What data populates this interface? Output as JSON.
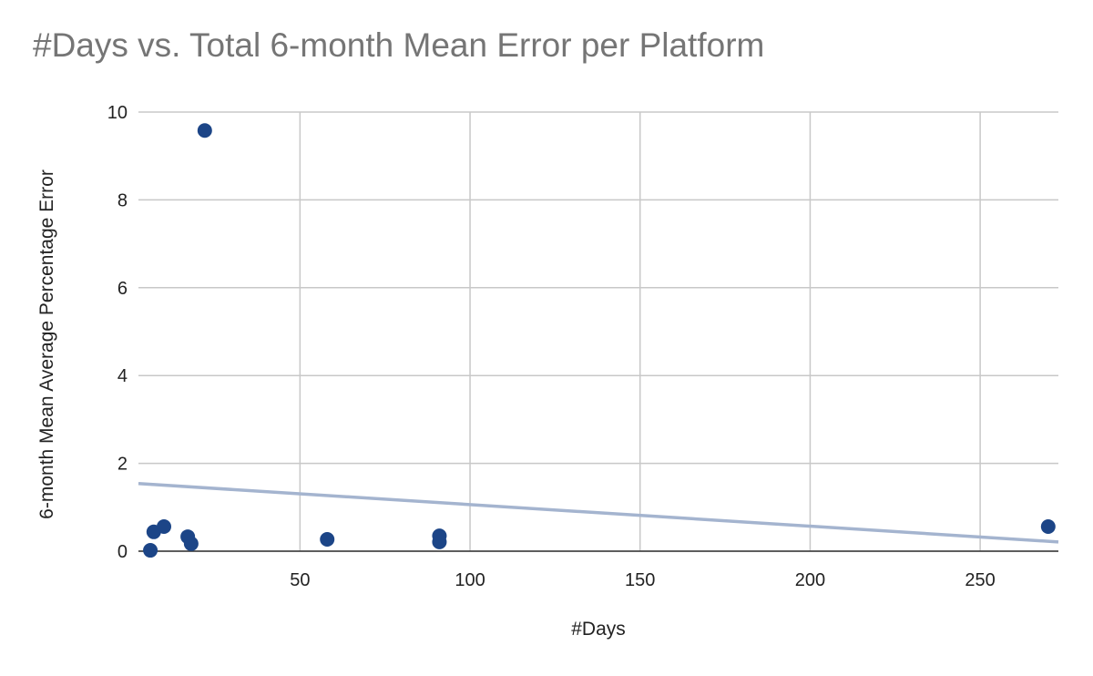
{
  "chart_data": {
    "type": "scatter",
    "title": "#Days vs. Total 6-month Mean Error per Platform",
    "x_label": "#Days",
    "y_label": "6-month Mean Average Percentage Error",
    "series": [
      {
        "name": "6-month Mean Average Percentage Error",
        "color": "#1c4587",
        "x": [
          22,
          7,
          10,
          6,
          17,
          18,
          58,
          91,
          91,
          270
        ],
        "values": [
          9.58,
          0.44,
          0.56,
          0.02,
          0.33,
          0.17,
          0.27,
          0.35,
          0.21,
          0.56
        ]
      }
    ],
    "trendline": {
      "color": "#a4b4cf",
      "x": [
        2.5,
        273
      ],
      "values": [
        1.54,
        0.21
      ]
    },
    "xlim": [
      2.5,
      273
    ],
    "xticks": [
      50,
      100,
      150,
      200,
      250
    ],
    "ylim": [
      0,
      10
    ],
    "yticks": [
      0,
      2,
      4,
      6,
      8,
      10
    ],
    "grid": true
  }
}
